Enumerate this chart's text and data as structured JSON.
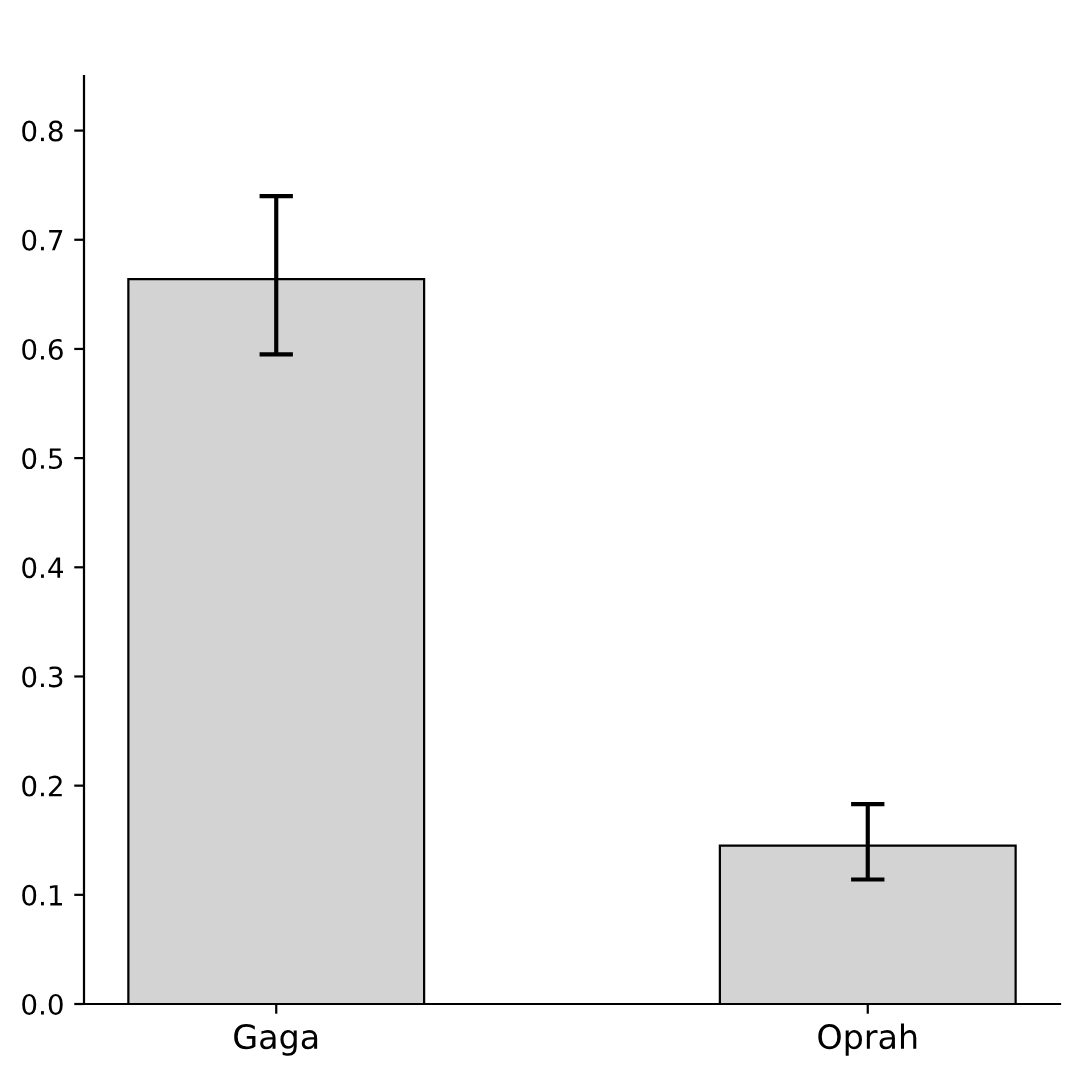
{
  "chart_data": {
    "type": "bar",
    "categories": [
      "Gaga",
      "Oprah"
    ],
    "values": [
      0.664,
      0.145
    ],
    "errors": [
      [
        0.595,
        0.74
      ],
      [
        0.114,
        0.183
      ]
    ],
    "color": "#d3d3d3",
    "ylim": [
      0,
      0.85
    ],
    "yticks": [
      {
        "value": 0,
        "label": "0.0"
      },
      0.1,
      0.2,
      0.3,
      0.4,
      0.5,
      0.6,
      0.7,
      0.8
    ],
    "grid": false
  }
}
